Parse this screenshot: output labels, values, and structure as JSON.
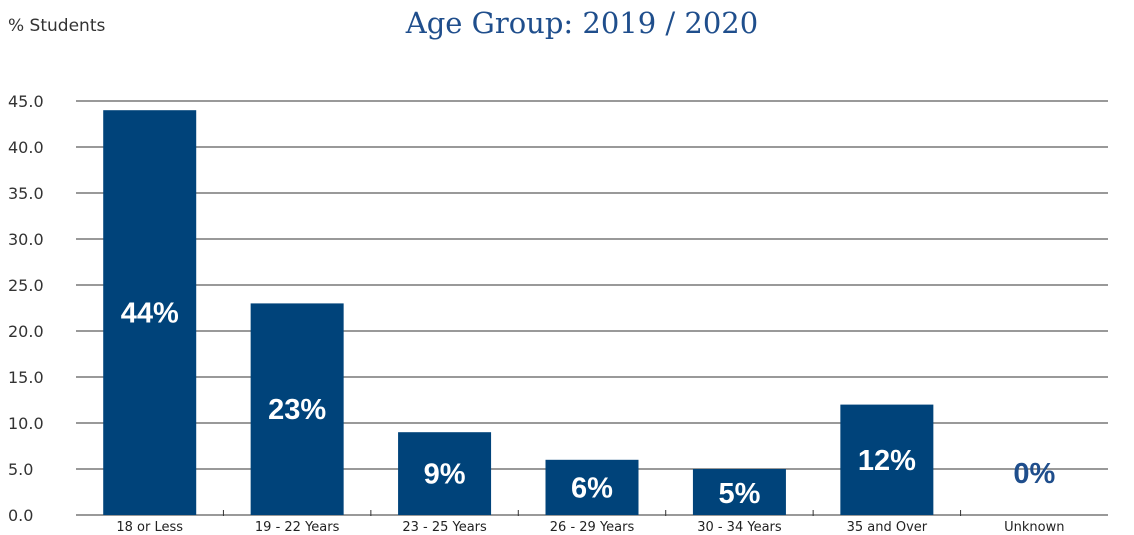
{
  "chart_data": {
    "type": "bar",
    "title": "Age Group: 2019 / 2020",
    "ylabel": "% Students",
    "xlabel": "",
    "categories": [
      "18 or Less",
      "19 - 22 Years",
      "23 - 25 Years",
      "26 - 29 Years",
      "30 - 34 Years",
      "35 and Over",
      "Unknown"
    ],
    "values": [
      44,
      23,
      9,
      6,
      5,
      12,
      0
    ],
    "data_labels": [
      "44%",
      "23%",
      "9%",
      "6%",
      "5%",
      "12%",
      "0%"
    ],
    "ylim": [
      0,
      45
    ],
    "yticks": [
      "0.0",
      "5.0",
      "10.0",
      "15.0",
      "20.0",
      "25.0",
      "30.0",
      "35.0",
      "40.0",
      "45.0"
    ],
    "grid": true,
    "legend": "none",
    "colors": {
      "bar": "#00437a",
      "label_on_bar": "#ffffff",
      "label_outside": "#1f4e8c",
      "grid": "#333333"
    }
  }
}
